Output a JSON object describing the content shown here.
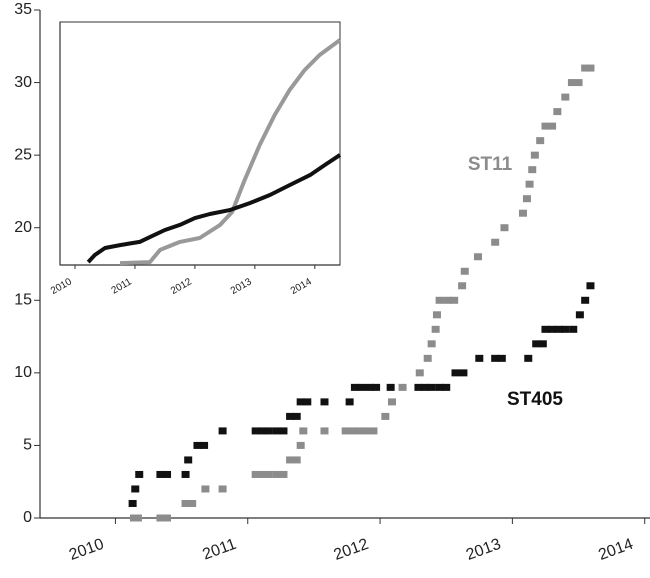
{
  "chart_data": [
    {
      "type": "scatter",
      "xlim": [
        2009.43,
        2014.04
      ],
      "xticks": [
        2010,
        2011,
        2012,
        2013,
        2014
      ],
      "ylim": [
        0,
        35
      ],
      "yticks": [
        0,
        5,
        10,
        15,
        20,
        25,
        30,
        35
      ],
      "series": [
        {
          "name": "ST11",
          "color": "#8c8c8c",
          "x": [
            2010.14,
            2010.17,
            2010.34,
            2010.39,
            2010.53,
            2010.58,
            2010.68,
            2010.81,
            2011.06,
            2011.11,
            2011.16,
            2011.22,
            2011.27,
            2011.32,
            2011.37,
            2011.4,
            2011.42,
            2011.58,
            2011.74,
            2011.79,
            2011.84,
            2011.89,
            2011.95,
            2012.04,
            2012.09,
            2012.17,
            2012.3,
            2012.36,
            2012.39,
            2012.42,
            2012.43,
            2012.45,
            2012.51,
            2012.56,
            2012.62,
            2012.64,
            2012.74,
            2012.87,
            2012.94,
            2013.08,
            2013.11,
            2013.13,
            2013.15,
            2013.17,
            2013.21,
            2013.25,
            2013.3,
            2013.34,
            2013.4,
            2013.45,
            2013.5,
            2013.55,
            2013.59
          ],
          "values": [
            0,
            0,
            0,
            0,
            1,
            1,
            2,
            2,
            3,
            3,
            3,
            3,
            3,
            4,
            4,
            5,
            6,
            6,
            6,
            6,
            6,
            6,
            6,
            7,
            8,
            9,
            10,
            11,
            12,
            13,
            14,
            15,
            15,
            15,
            16,
            17,
            18,
            19,
            20,
            21,
            22,
            23,
            24,
            25,
            26,
            27,
            27,
            28,
            29,
            30,
            30,
            31,
            31
          ]
        },
        {
          "name": "ST405",
          "color": "#111111",
          "x": [
            2010.13,
            2010.15,
            2010.18,
            2010.34,
            2010.39,
            2010.53,
            2010.55,
            2010.62,
            2010.67,
            2010.81,
            2011.06,
            2011.11,
            2011.16,
            2011.22,
            2011.27,
            2011.32,
            2011.37,
            2011.4,
            2011.45,
            2011.58,
            2011.77,
            2011.81,
            2011.86,
            2011.92,
            2011.97,
            2012.08,
            2012.29,
            2012.34,
            2012.39,
            2012.45,
            2012.5,
            2012.57,
            2012.63,
            2012.75,
            2012.87,
            2012.92,
            2013.12,
            2013.18,
            2013.23,
            2013.25,
            2013.3,
            2013.35,
            2013.4,
            2013.46,
            2013.51,
            2013.55,
            2013.59
          ],
          "values": [
            1,
            2,
            3,
            3,
            3,
            3,
            4,
            5,
            5,
            6,
            6,
            6,
            6,
            6,
            6,
            7,
            7,
            8,
            8,
            8,
            8,
            9,
            9,
            9,
            9,
            9,
            9,
            9,
            9,
            9,
            9,
            10,
            10,
            11,
            11,
            11,
            11,
            12,
            12,
            13,
            13,
            13,
            13,
            13,
            14,
            15,
            16
          ]
        }
      ]
    },
    {
      "type": "line",
      "xlim": [
        2009.75,
        2014.42
      ],
      "xticks": [
        2010,
        2011,
        2012,
        2013,
        2014
      ],
      "ylim": [
        0,
        100
      ],
      "series": [
        {
          "color": "#999999",
          "x": [
            2010.75,
            2011.25,
            2011.42,
            2011.75,
            2012.08,
            2012.42,
            2012.62,
            2012.83,
            2013.08,
            2013.33,
            2013.58,
            2013.83,
            2014.08,
            2014.42
          ],
          "values": [
            0.8,
            1.2,
            6.2,
            9.5,
            11.1,
            16.5,
            21.8,
            35,
            49.4,
            61.7,
            72,
            80.2,
            86.4,
            92.6
          ]
        },
        {
          "color": "#111111",
          "x": [
            2010.22,
            2010.33,
            2010.5,
            2010.75,
            2011.08,
            2011.25,
            2011.5,
            2011.75,
            2012.0,
            2012.25,
            2012.58,
            2012.92,
            2013.25,
            2013.58,
            2013.92,
            2014.17,
            2014.42
          ],
          "values": [
            1.2,
            4.1,
            7,
            8.2,
            9.5,
            11.5,
            14.4,
            16.5,
            19.3,
            21,
            22.6,
            25.5,
            28.8,
            32.9,
            37,
            41.2,
            45.3
          ]
        }
      ]
    }
  ]
}
